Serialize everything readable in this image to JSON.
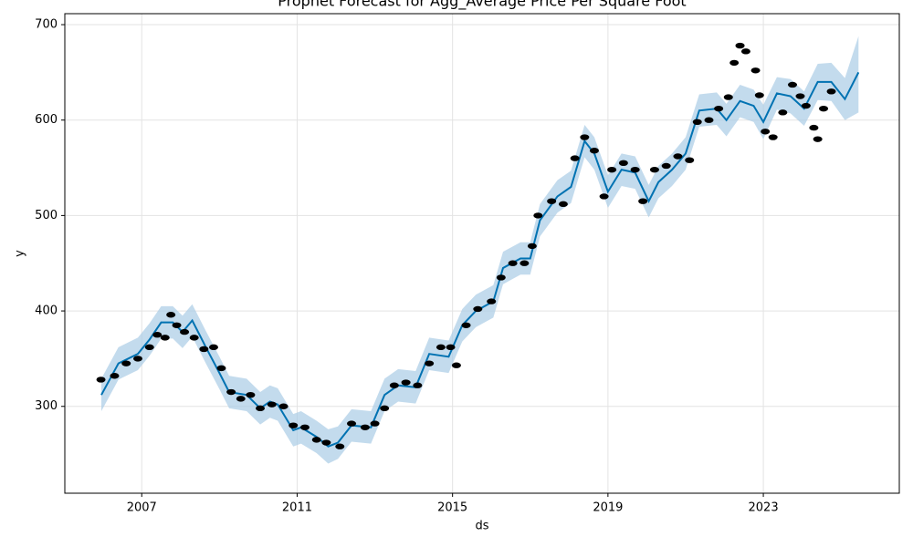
{
  "chart_data": {
    "type": "forecast",
    "title": "Prophet Forecast for Agg_Average Price Per Square Foot",
    "x_label": "ds",
    "y_label": "y",
    "xlim": [
      2005.02,
      2026.5
    ],
    "xticks": [
      2007,
      2011,
      2015,
      2019,
      2023
    ],
    "ylim": [
      209,
      711.5
    ],
    "yticks": [
      300,
      400,
      500,
      600,
      700
    ],
    "grid": true,
    "forecast": {
      "color": "#0072b2",
      "band_color": "#a9cce6",
      "x": [
        2005.96,
        2006.4,
        2006.9,
        2007.2,
        2007.5,
        2007.8,
        2008.05,
        2008.3,
        2008.65,
        2009.0,
        2009.25,
        2009.7,
        2010.05,
        2010.3,
        2010.5,
        2010.9,
        2011.1,
        2011.5,
        2011.8,
        2012.05,
        2012.4,
        2012.9,
        2013.25,
        2013.6,
        2014.05,
        2014.4,
        2014.9,
        2015.25,
        2015.6,
        2016.05,
        2016.3,
        2016.75,
        2017.0,
        2017.25,
        2017.7,
        2018.05,
        2018.4,
        2018.65,
        2019.0,
        2019.35,
        2019.7,
        2020.05,
        2020.3,
        2020.65,
        2021.0,
        2021.35,
        2021.8,
        2022.05,
        2022.4,
        2022.75,
        2023.0,
        2023.35,
        2023.7,
        2024.05,
        2024.4,
        2024.75,
        2025.1,
        2025.45
      ],
      "values": [
        312,
        345,
        355,
        370,
        388,
        388,
        378,
        390,
        362,
        335,
        315,
        312,
        298,
        305,
        302,
        275,
        278,
        268,
        258,
        262,
        280,
        278,
        312,
        322,
        320,
        355,
        352,
        385,
        400,
        410,
        445,
        455,
        455,
        495,
        520,
        530,
        578,
        565,
        525,
        548,
        545,
        515,
        535,
        548,
        565,
        610,
        612,
        600,
        620,
        615,
        598,
        628,
        625,
        612,
        640,
        640,
        622,
        650
      ],
      "lower": [
        295,
        328,
        338,
        353,
        371,
        371,
        361,
        373,
        345,
        318,
        298,
        295,
        281,
        288,
        285,
        258,
        261,
        251,
        240,
        245,
        263,
        261,
        295,
        305,
        303,
        338,
        335,
        368,
        383,
        393,
        428,
        438,
        438,
        478,
        503,
        513,
        561,
        548,
        508,
        531,
        528,
        498,
        518,
        531,
        548,
        593,
        595,
        583,
        603,
        598,
        580,
        611,
        607,
        594,
        621,
        620,
        600,
        608
      ],
      "upper": [
        329,
        362,
        372,
        387,
        405,
        405,
        395,
        407,
        379,
        352,
        332,
        329,
        315,
        322,
        319,
        292,
        295,
        285,
        276,
        279,
        297,
        295,
        329,
        339,
        337,
        372,
        369,
        402,
        417,
        427,
        462,
        472,
        472,
        512,
        537,
        547,
        595,
        582,
        542,
        565,
        562,
        532,
        552,
        565,
        582,
        627,
        629,
        617,
        637,
        632,
        616,
        645,
        643,
        630,
        659,
        660,
        644,
        688
      ]
    },
    "points": {
      "color": "#000000",
      "x": [
        2005.95,
        2006.3,
        2006.6,
        2006.9,
        2007.2,
        2007.4,
        2007.6,
        2007.75,
        2007.9,
        2008.1,
        2008.35,
        2008.6,
        2008.85,
        2009.05,
        2009.3,
        2009.55,
        2009.8,
        2010.05,
        2010.35,
        2010.65,
        2010.9,
        2011.2,
        2011.5,
        2011.75,
        2012.1,
        2012.4,
        2012.75,
        2013.0,
        2013.25,
        2013.5,
        2013.8,
        2014.1,
        2014.4,
        2014.7,
        2014.95,
        2015.1,
        2015.35,
        2015.65,
        2016.0,
        2016.25,
        2016.55,
        2016.85,
        2017.05,
        2017.2,
        2017.55,
        2017.85,
        2018.15,
        2018.4,
        2018.65,
        2018.9,
        2019.1,
        2019.4,
        2019.7,
        2019.9,
        2020.2,
        2020.5,
        2020.8,
        2021.1,
        2021.3,
        2021.6,
        2021.85,
        2022.1,
        2022.25,
        2022.4,
        2022.55,
        2022.8,
        2022.9,
        2023.05,
        2023.25,
        2023.5,
        2023.75,
        2023.95,
        2024.1,
        2024.3,
        2024.4,
        2024.55,
        2024.75
      ],
      "values": [
        328,
        332,
        345,
        350,
        362,
        375,
        372,
        396,
        385,
        378,
        372,
        360,
        362,
        340,
        315,
        308,
        312,
        298,
        302,
        300,
        280,
        278,
        265,
        262,
        258,
        282,
        278,
        282,
        298,
        322,
        325,
        322,
        345,
        362,
        362,
        343,
        385,
        402,
        410,
        435,
        450,
        450,
        468,
        500,
        515,
        512,
        560,
        582,
        568,
        520,
        548,
        555,
        548,
        515,
        548,
        552,
        562,
        558,
        598,
        600,
        612,
        624,
        660,
        678,
        672,
        652,
        626,
        588,
        582,
        608,
        637,
        625,
        615,
        592,
        580,
        612,
        630
      ]
    }
  }
}
